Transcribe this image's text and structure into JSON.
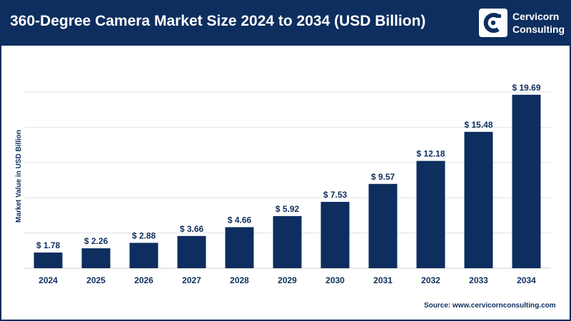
{
  "header": {
    "title": "360-Degree Camera Market Size 2024 to 2034 (USD Billion)",
    "logo_line1": "Cervicorn",
    "logo_line2": "Consulting"
  },
  "footer": {
    "source": "Source: www.cervicornconsulting.com"
  },
  "colors": {
    "header_bg": "#0d2e5e",
    "bar": "#0d2e5e",
    "grid": "#e2e2e2"
  },
  "chart_data": {
    "type": "bar",
    "title": "360-Degree Camera Market Size 2024 to 2034 (USD Billion)",
    "xlabel": "",
    "ylabel": "Market Value in USD Billion",
    "categories": [
      "2024",
      "2025",
      "2026",
      "2027",
      "2028",
      "2029",
      "2030",
      "2031",
      "2032",
      "2033",
      "2034"
    ],
    "values": [
      1.78,
      2.26,
      2.88,
      3.66,
      4.66,
      5.92,
      7.53,
      9.57,
      12.18,
      15.48,
      19.69
    ],
    "data_labels": [
      "$ 1.78",
      "$ 2.26",
      "$ 2.88",
      "$ 3.66",
      "$ 4.66",
      "$ 5.92",
      "$ 7.53",
      "$ 9.57",
      "$ 12.18",
      "$ 15.48",
      "$ 19.69"
    ],
    "ylim": [
      0,
      20
    ],
    "grid": true,
    "legend": "none"
  }
}
